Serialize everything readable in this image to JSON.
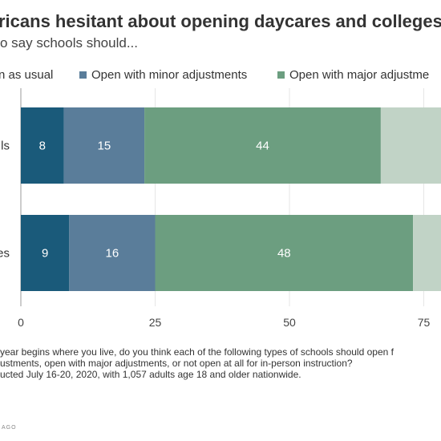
{
  "header": {
    "title": "ricans hesitant about opening daycares and colleges",
    "subtitle": "o say schools should..."
  },
  "colors": {
    "as_usual": "#1a5a7a",
    "minor": "#5a7d9a",
    "major": "#6c9e80",
    "not_at_all": "#c1d3c6",
    "axis": "#999999",
    "grid": "#e6e6e6"
  },
  "chart_data": {
    "type": "bar",
    "orientation": "horizontal",
    "stacked": true,
    "categories": [
      "ls",
      "es"
    ],
    "series": [
      {
        "name": "n as usual",
        "values": [
          8,
          9
        ]
      },
      {
        "name": "Open with minor adjustments",
        "values": [
          15,
          16
        ]
      },
      {
        "name": "Open with major adjustme",
        "values": [
          44,
          48
        ]
      },
      {
        "name": "",
        "values": [
          33,
          27
        ]
      }
    ],
    "xlim": [
      0,
      100
    ],
    "xticks": [
      0,
      25,
      50,
      75
    ],
    "grid": true,
    "legend": "top"
  },
  "notes": {
    "line1": "year begins where you live, do you think each of the following types of schools should open f",
    "line2": "ustments, open with major adjustments, or not open at all for in-person instruction?",
    "line3": "ucted July 16-20, 2020, with 1,057 adults age 18 and older nationwide.",
    "logo": "AGO"
  }
}
